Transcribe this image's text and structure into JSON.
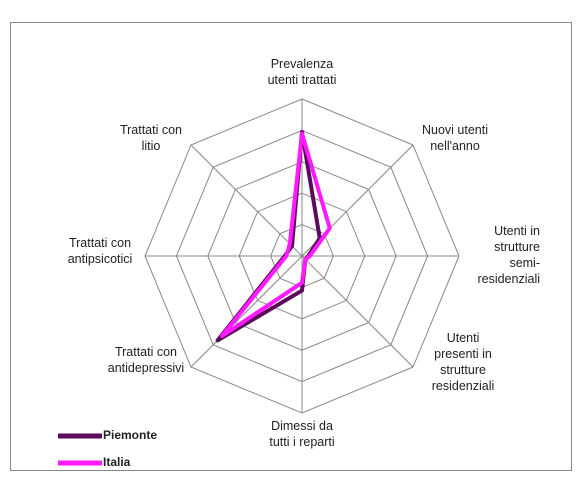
{
  "chart_data": {
    "type": "radar",
    "categories": [
      [
        "Prevalenza",
        "utenti trattati"
      ],
      [
        "Nuovi utenti",
        "nell'anno"
      ],
      [
        "Utenti in",
        "strutture",
        "semi-",
        "residenziali"
      ],
      [
        "Utenti",
        "presenti in",
        "strutture",
        "residenziali"
      ],
      [
        "Dimessi da",
        "tutti i reparti"
      ],
      [
        "Trattati con",
        "antidepressivi"
      ],
      [
        "Trattati con",
        "antipsicotici"
      ],
      [
        "Trattati con",
        "litio"
      ]
    ],
    "series": [
      {
        "name": "Piemonte",
        "color": "#5c0a5c",
        "values": [
          79,
          16,
          4,
          3,
          22,
          76,
          11,
          9
        ]
      },
      {
        "name": "Italia",
        "color": "#ff1aff",
        "values": [
          78,
          25,
          5,
          3,
          17,
          72,
          10,
          11
        ]
      }
    ],
    "ylim": [
      0,
      100
    ],
    "yticks": [
      0,
      20,
      40,
      60,
      80,
      100
    ],
    "grid": true,
    "legend": "bottom-left"
  }
}
